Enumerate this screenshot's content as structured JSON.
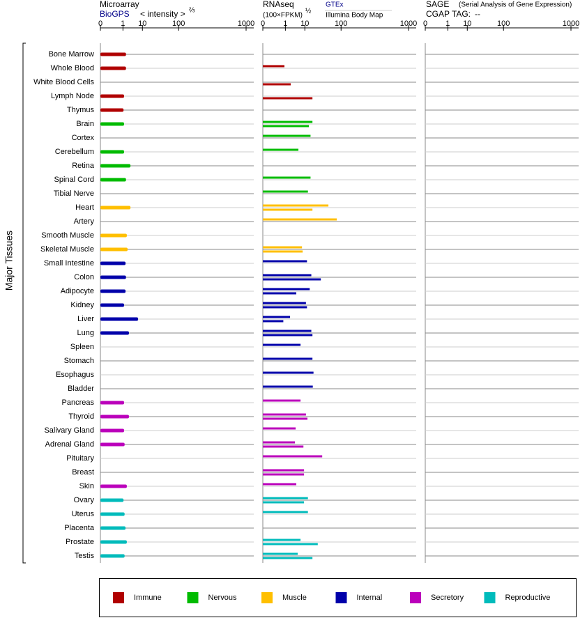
{
  "chart_data": {
    "type": "bar",
    "y_label": "Major Tissues",
    "categories": [
      "Bone Marrow",
      "Whole Blood",
      "White Blood Cells",
      "Lymph Node",
      "Thymus",
      "Brain",
      "Cortex",
      "Cerebellum",
      "Retina",
      "Spinal Cord",
      "Tibial Nerve",
      "Heart",
      "Artery",
      "Smooth Muscle",
      "Skeletal Muscle",
      "Small Intestine",
      "Colon",
      "Adipocyte",
      "Kidney",
      "Liver",
      "Lung",
      "Spleen",
      "Stomach",
      "Esophagus",
      "Bladder",
      "Pancreas",
      "Thyroid",
      "Salivary Gland",
      "Adrenal Gland",
      "Pituitary",
      "Breast",
      "Skin",
      "Ovary",
      "Uterus",
      "Placenta",
      "Prostate",
      "Testis"
    ],
    "category_groups": [
      0,
      0,
      0,
      0,
      0,
      1,
      1,
      1,
      1,
      1,
      1,
      2,
      2,
      2,
      2,
      3,
      3,
      3,
      3,
      3,
      3,
      3,
      3,
      3,
      3,
      4,
      4,
      4,
      4,
      4,
      4,
      4,
      5,
      5,
      5,
      5,
      5
    ],
    "groups": [
      {
        "name": "Immune",
        "color": "#b00000"
      },
      {
        "name": "Nervous",
        "color": "#00bb00"
      },
      {
        "name": "Muscle",
        "color": "#ffbf00"
      },
      {
        "name": "Internal",
        "color": "#0000aa"
      },
      {
        "name": "Secretory",
        "color": "#bb00bb"
      },
      {
        "name": "Reproductive",
        "color": "#00bbbb"
      }
    ],
    "panels": [
      {
        "title": "Microarray",
        "scale_label": "< intensity >",
        "exponent": "⅔",
        "xlim": [
          0,
          1000
        ],
        "xticks": [
          0,
          1,
          10,
          100,
          1000
        ],
        "series": [
          {
            "name": "BioGPS",
            "values": [
              1.6,
              1.6,
              null,
              1.2,
              1.1,
              1.2,
              null,
              1.2,
              2.9,
              1.6,
              null,
              2.9,
              null,
              1.8,
              2.0,
              1.5,
              1.6,
              1.5,
              1.2,
              6.7,
              2.4,
              null,
              null,
              null,
              null,
              1.2,
              2.4,
              1.2,
              1.3,
              null,
              null,
              1.8,
              1.1,
              1.3,
              1.5,
              1.8,
              1.3
            ]
          }
        ]
      },
      {
        "title": "RNAseq",
        "scale_label": "(100×FPKM)",
        "exponent": "½",
        "xlim": [
          0,
          1000
        ],
        "xticks": [
          0,
          1,
          10,
          100,
          1000
        ],
        "series": [
          {
            "name": "GTEx",
            "values": [
              null,
              0.85,
              null,
              null,
              null,
              18.5,
              16,
              5.4,
              null,
              16,
              13,
              52,
              81,
              null,
              7.7,
              12,
              17,
              15,
              11,
              2.0,
              17,
              6.7,
              18.5,
              20,
              19,
              6.7,
              11,
              4.0,
              3.7,
              36,
              9.3,
              4.3,
              13,
              13,
              null,
              6.7,
              5.0
            ]
          },
          {
            "name": "Illumina Body Map",
            "values": [
              null,
              null,
              2.2,
              18.5,
              null,
              14,
              null,
              null,
              null,
              null,
              null,
              18.5,
              null,
              null,
              8.2,
              null,
              33,
              4.3,
              12,
              0.7,
              18.5,
              null,
              null,
              null,
              null,
              null,
              12.5,
              null,
              8.8,
              null,
              9.3,
              null,
              9.3,
              null,
              null,
              27,
              18.5
            ]
          }
        ]
      },
      {
        "title": "SAGE",
        "subtitle": "(Serial Analysis of Gene Expression)",
        "tag_label": "CGAP TAG:",
        "tag_value": "--",
        "xlim": [
          0,
          1000
        ],
        "xticks": [
          0,
          1,
          10,
          100,
          1000
        ]
      }
    ]
  }
}
